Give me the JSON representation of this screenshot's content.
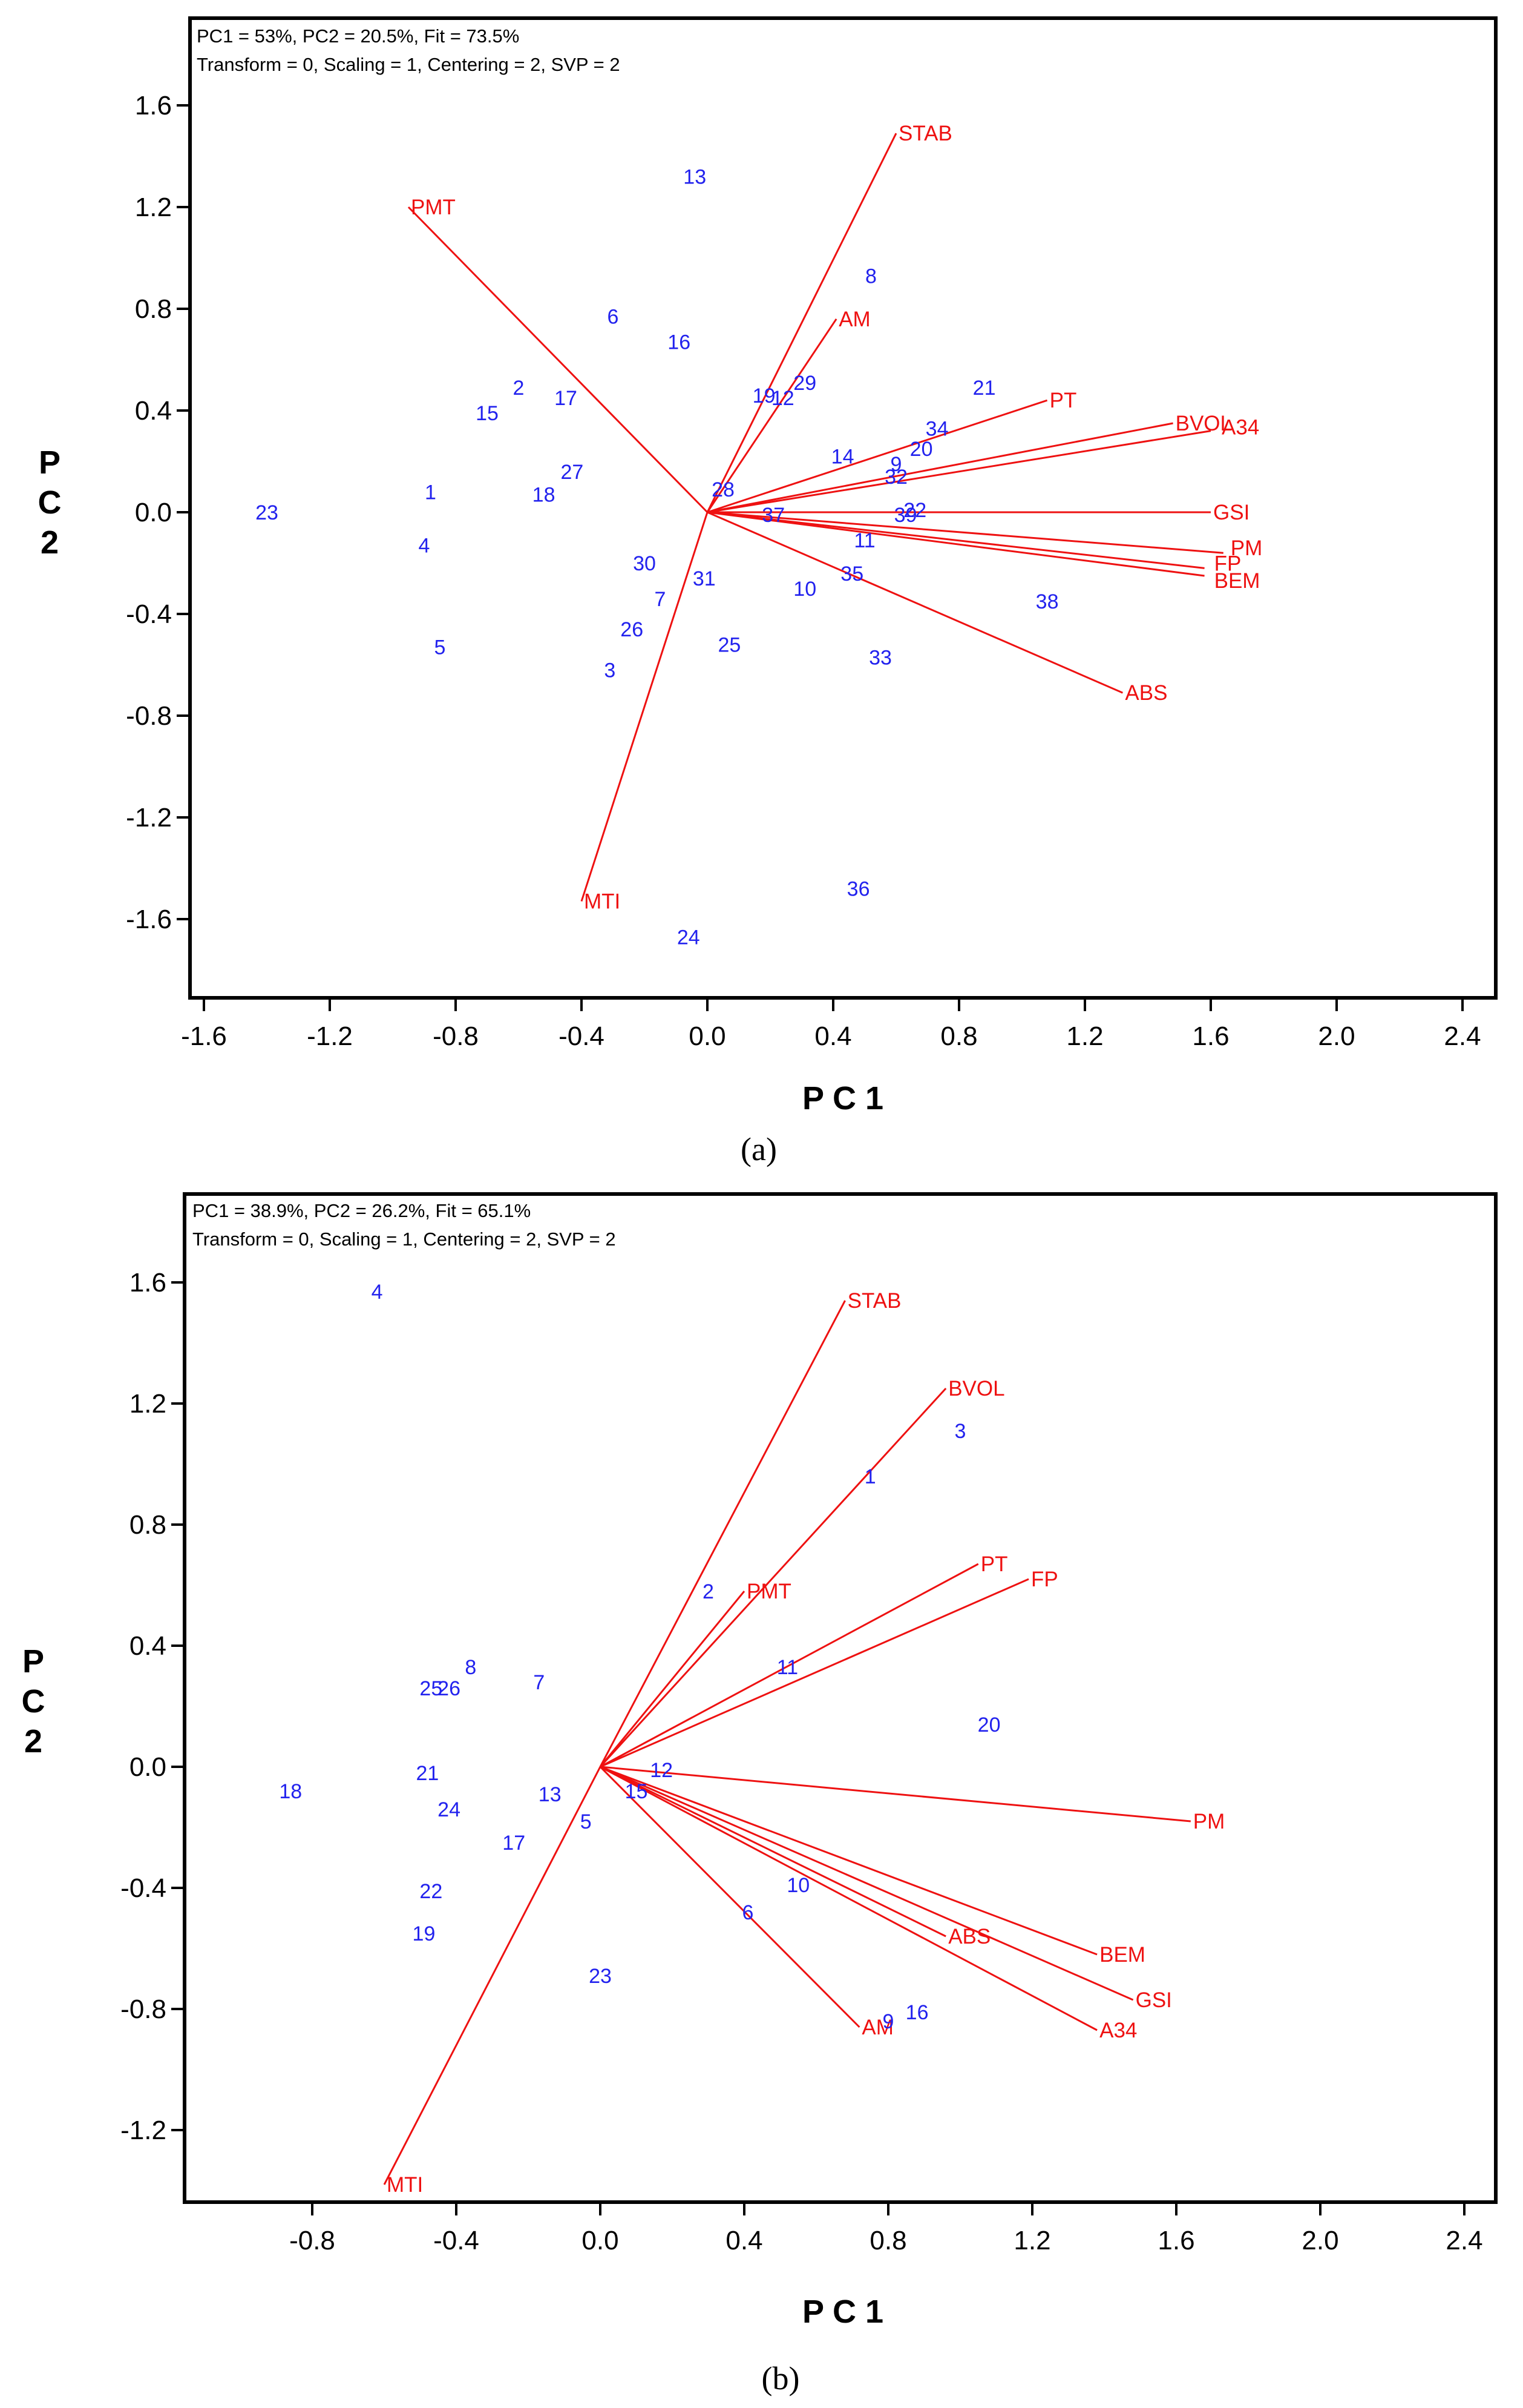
{
  "chart_data": [
    {
      "type": "scatter",
      "subtype": "GGE biplot",
      "panel_label": "(a)",
      "header_line1": "PC1 = 53%, PC2 = 20.5%, Fit = 73.5%",
      "header_line2": "Transform = 0, Scaling = 1, Centering = 2, SVP = 2",
      "xlabel": "P C 1",
      "ylabel": "P C 2",
      "xlim": [
        -1.75,
        2.5
      ],
      "ylim": [
        -1.85,
        1.95
      ],
      "xticks": [
        "-1.6",
        "-1.2",
        "-0.8",
        "-0.4",
        "0.0",
        "0.4",
        "0.8",
        "1.2",
        "1.6",
        "2.0",
        "2.4"
      ],
      "yticks": [
        "1.6",
        "1.2",
        "0.8",
        "0.4",
        "0.0",
        "-0.4",
        "-0.8",
        "-1.2",
        "-1.6"
      ],
      "trait_vectors": [
        {
          "label": "STAB",
          "x": 0.6,
          "y": 1.49
        },
        {
          "label": "PMT",
          "x": -0.95,
          "y": 1.2
        },
        {
          "label": "AM",
          "x": 0.41,
          "y": 0.76
        },
        {
          "label": "PT",
          "x": 1.08,
          "y": 0.44
        },
        {
          "label": "BVOL",
          "x": 1.48,
          "y": 0.35
        },
        {
          "label": "A34",
          "x": 1.6,
          "y": 0.32
        },
        {
          "label": "GSI",
          "x": 1.6,
          "y": 0.0
        },
        {
          "label": "PM",
          "x": 1.64,
          "y": -0.16
        },
        {
          "label": "FP",
          "x": 1.58,
          "y": -0.22
        },
        {
          "label": "BEM",
          "x": 1.58,
          "y": -0.25
        },
        {
          "label": "ABS",
          "x": 1.32,
          "y": -0.71
        },
        {
          "label": "MTI",
          "x": -0.4,
          "y": -1.53
        }
      ],
      "entries": [
        {
          "label": "1",
          "x": -0.88,
          "y": 0.08
        },
        {
          "label": "2",
          "x": -0.6,
          "y": 0.49
        },
        {
          "label": "3",
          "x": -0.31,
          "y": -0.62
        },
        {
          "label": "4",
          "x": -0.9,
          "y": -0.13
        },
        {
          "label": "5",
          "x": -0.85,
          "y": -0.53
        },
        {
          "label": "6",
          "x": -0.3,
          "y": 0.77
        },
        {
          "label": "7",
          "x": -0.15,
          "y": -0.34
        },
        {
          "label": "8",
          "x": 0.52,
          "y": 0.93
        },
        {
          "label": "9",
          "x": 0.6,
          "y": 0.19
        },
        {
          "label": "10",
          "x": 0.31,
          "y": -0.3
        },
        {
          "label": "11",
          "x": 0.5,
          "y": -0.11
        },
        {
          "label": "12",
          "x": 0.24,
          "y": 0.45
        },
        {
          "label": "13",
          "x": -0.04,
          "y": 1.32
        },
        {
          "label": "14",
          "x": 0.43,
          "y": 0.22
        },
        {
          "label": "15",
          "x": -0.7,
          "y": 0.39
        },
        {
          "label": "16",
          "x": -0.09,
          "y": 0.67
        },
        {
          "label": "17",
          "x": -0.45,
          "y": 0.45
        },
        {
          "label": "18",
          "x": -0.52,
          "y": 0.07
        },
        {
          "label": "19",
          "x": 0.18,
          "y": 0.46
        },
        {
          "label": "20",
          "x": 0.68,
          "y": 0.25
        },
        {
          "label": "21",
          "x": 0.88,
          "y": 0.49
        },
        {
          "label": "22",
          "x": 0.66,
          "y": 0.01
        },
        {
          "label": "23",
          "x": -1.4,
          "y": 0.0
        },
        {
          "label": "24",
          "x": -0.06,
          "y": -1.67
        },
        {
          "label": "25",
          "x": 0.07,
          "y": -0.52
        },
        {
          "label": "26",
          "x": -0.24,
          "y": -0.46
        },
        {
          "label": "27",
          "x": -0.43,
          "y": 0.16
        },
        {
          "label": "28",
          "x": 0.05,
          "y": 0.09
        },
        {
          "label": "29",
          "x": 0.31,
          "y": 0.51
        },
        {
          "label": "30",
          "x": -0.2,
          "y": -0.2
        },
        {
          "label": "31",
          "x": -0.01,
          "y": -0.26
        },
        {
          "label": "32",
          "x": 0.6,
          "y": 0.14
        },
        {
          "label": "33",
          "x": 0.55,
          "y": -0.57
        },
        {
          "label": "34",
          "x": 0.73,
          "y": 0.33
        },
        {
          "label": "35",
          "x": 0.46,
          "y": -0.24
        },
        {
          "label": "36",
          "x": 0.48,
          "y": -1.48
        },
        {
          "label": "37",
          "x": 0.21,
          "y": -0.01
        },
        {
          "label": "38",
          "x": 1.08,
          "y": -0.35
        },
        {
          "label": "39",
          "x": 0.63,
          "y": -0.01
        }
      ]
    },
    {
      "type": "scatter",
      "subtype": "GGE biplot",
      "panel_label": "(b)",
      "header_line1": "PC1 = 38.9%, PC2 = 26.2%, Fit = 65.1%",
      "header_line2": "Transform = 0, Scaling = 1, Centering = 2, SVP = 2",
      "xlabel": "P C 1",
      "ylabel": "P C 2",
      "xlim": [
        -1.16,
        2.47
      ],
      "ylim": [
        -1.5,
        1.83
      ],
      "xticks": [
        "-0.8",
        "-0.4",
        "0.0",
        "0.4",
        "0.8",
        "1.2",
        "1.6",
        "2.0",
        "2.4"
      ],
      "yticks": [
        "1.6",
        "1.2",
        "0.8",
        "0.4",
        "0.0",
        "-0.4",
        "-0.8",
        "-1.2"
      ],
      "trait_vectors": [
        {
          "label": "STAB",
          "x": 0.68,
          "y": 1.54
        },
        {
          "label": "BVOL",
          "x": 0.96,
          "y": 1.25
        },
        {
          "label": "PT",
          "x": 1.05,
          "y": 0.67
        },
        {
          "label": "FP",
          "x": 1.19,
          "y": 0.62
        },
        {
          "label": "PMT",
          "x": 0.4,
          "y": 0.58
        },
        {
          "label": "PM",
          "x": 1.64,
          "y": -0.18
        },
        {
          "label": "BEM",
          "x": 1.38,
          "y": -0.62
        },
        {
          "label": "ABS",
          "x": 0.96,
          "y": -0.56
        },
        {
          "label": "GSI",
          "x": 1.48,
          "y": -0.77
        },
        {
          "label": "A34",
          "x": 1.38,
          "y": -0.87
        },
        {
          "label": "AM",
          "x": 0.72,
          "y": -0.86
        },
        {
          "label": "MTI",
          "x": -0.6,
          "y": -1.38
        }
      ],
      "entries": [
        {
          "label": "1",
          "x": 0.75,
          "y": 0.96
        },
        {
          "label": "2",
          "x": 0.3,
          "y": 0.58
        },
        {
          "label": "3",
          "x": 1.0,
          "y": 1.11
        },
        {
          "label": "4",
          "x": -0.62,
          "y": 1.57
        },
        {
          "label": "5",
          "x": -0.04,
          "y": -0.18
        },
        {
          "label": "6",
          "x": 0.41,
          "y": -0.48
        },
        {
          "label": "7",
          "x": -0.17,
          "y": 0.28
        },
        {
          "label": "8",
          "x": -0.36,
          "y": 0.33
        },
        {
          "label": "9",
          "x": 0.8,
          "y": -0.84
        },
        {
          "label": "10",
          "x": 0.55,
          "y": -0.39
        },
        {
          "label": "11",
          "x": 0.52,
          "y": 0.33
        },
        {
          "label": "12",
          "x": 0.17,
          "y": -0.01
        },
        {
          "label": "13",
          "x": -0.14,
          "y": -0.09
        },
        {
          "label": "15",
          "x": 0.1,
          "y": -0.08
        },
        {
          "label": "16",
          "x": 0.88,
          "y": -0.81
        },
        {
          "label": "17",
          "x": -0.24,
          "y": -0.25
        },
        {
          "label": "18",
          "x": -0.86,
          "y": -0.08
        },
        {
          "label": "19",
          "x": -0.49,
          "y": -0.55
        },
        {
          "label": "20",
          "x": 1.08,
          "y": 0.14
        },
        {
          "label": "21",
          "x": -0.48,
          "y": -0.02
        },
        {
          "label": "22",
          "x": -0.47,
          "y": -0.41
        },
        {
          "label": "23",
          "x": 0.0,
          "y": -0.69
        },
        {
          "label": "24",
          "x": -0.42,
          "y": -0.14
        },
        {
          "label": "25",
          "x": -0.47,
          "y": 0.26
        },
        {
          "label": "26",
          "x": -0.42,
          "y": 0.26
        }
      ]
    }
  ]
}
